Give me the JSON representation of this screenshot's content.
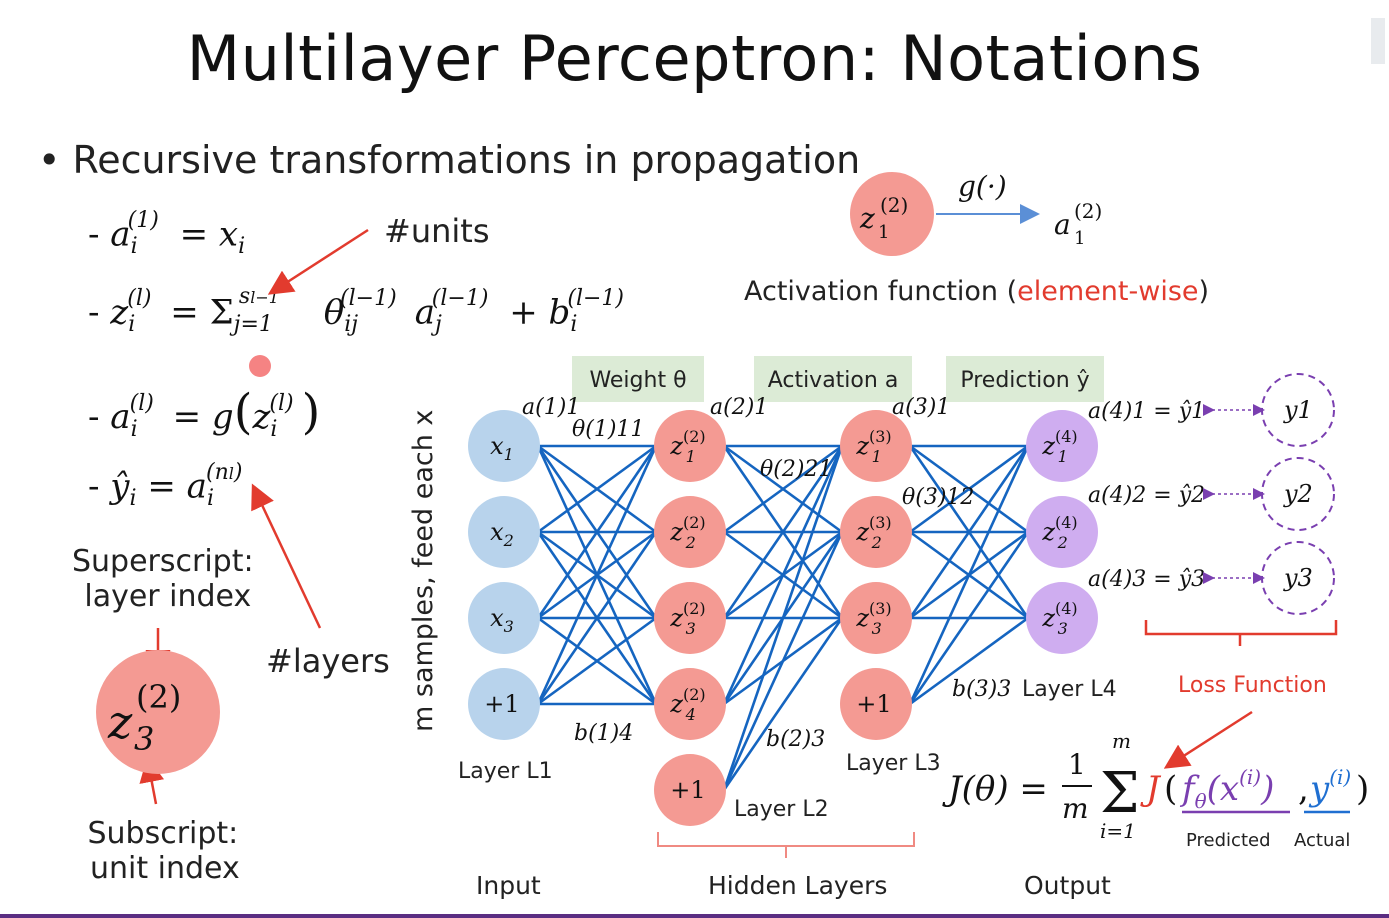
{
  "title": "Multilayer Perceptron: Notations",
  "bullet": "Recursive transformations in propagation",
  "equations": {
    "eq1": "- a(1)i = xi",
    "eq2": "- z(l)i = Σ sl−1 j=1 θ(l−1)ij a(l−1)j + b(l−1)i",
    "eq3": "- a(l)i = g(z(l)i)",
    "eq4": "- ŷi = a(nl)i"
  },
  "notes": {
    "units": "#units",
    "layers": "#layers",
    "superscript_l1": "Superscript:",
    "superscript_l2": "layer index",
    "subscript_l1": "Subscript:",
    "subscript_l2": "unit index",
    "example_node": "z",
    "example_sup": "(2)",
    "example_sub": "3"
  },
  "activation": {
    "node": "z",
    "node_sup": "(2)",
    "node_sub": "1",
    "func": "g(·)",
    "output": "a",
    "output_sup": "(2)",
    "output_sub": "1",
    "caption_main": "Activation function (",
    "caption_highlight": "element-wise",
    "caption_end": ")"
  },
  "diagram": {
    "vertical_label": "m samples, feed each x",
    "headers": {
      "weight": "Weight θ",
      "activation": "Activation a",
      "prediction": "Prediction ŷ"
    },
    "input_nodes": [
      "x1",
      "x2",
      "x3",
      "+1"
    ],
    "hidden2_nodes": [
      "z(2)1",
      "z(2)2",
      "z(2)3",
      "z(2)4",
      "+1"
    ],
    "hidden3_nodes": [
      "z(3)1",
      "z(3)2",
      "z(3)3",
      "+1"
    ],
    "output_nodes": [
      "z(4)1",
      "z(4)2",
      "z(4)3"
    ],
    "predictions": [
      "a(4)1 = ŷ1",
      "a(4)2 = ŷ2",
      "a(4)3 = ŷ3"
    ],
    "targets": [
      "y1",
      "y2",
      "y3"
    ],
    "layer_labels": [
      "Layer L1",
      "Layer L2",
      "Layer L3",
      "Layer L4"
    ],
    "edge_labels": [
      "a(1)1",
      "θ(1)11",
      "a(2)1",
      "θ(2)21",
      "a(3)1",
      "θ(3)12",
      "b(1)4",
      "b(2)3",
      "b(3)3"
    ],
    "group_labels": {
      "input": "Input",
      "hidden": "Hidden Layers",
      "output": "Output"
    },
    "loss_label": "Loss Function",
    "loss_formula": "J(θ) = 1/m Σ i=1..m J(fθ(x(i)), y(i))",
    "predicted": "Predicted",
    "actual": "Actual"
  },
  "colors": {
    "input": "#b8d3ec",
    "hidden": "#f49a93",
    "output": "#cfadf0",
    "edge": "#1565c0",
    "header_bg": "#dcebd6",
    "accent_red": "#e23b2e",
    "purple": "#7a3fb0",
    "blue": "#1f6fd1"
  }
}
